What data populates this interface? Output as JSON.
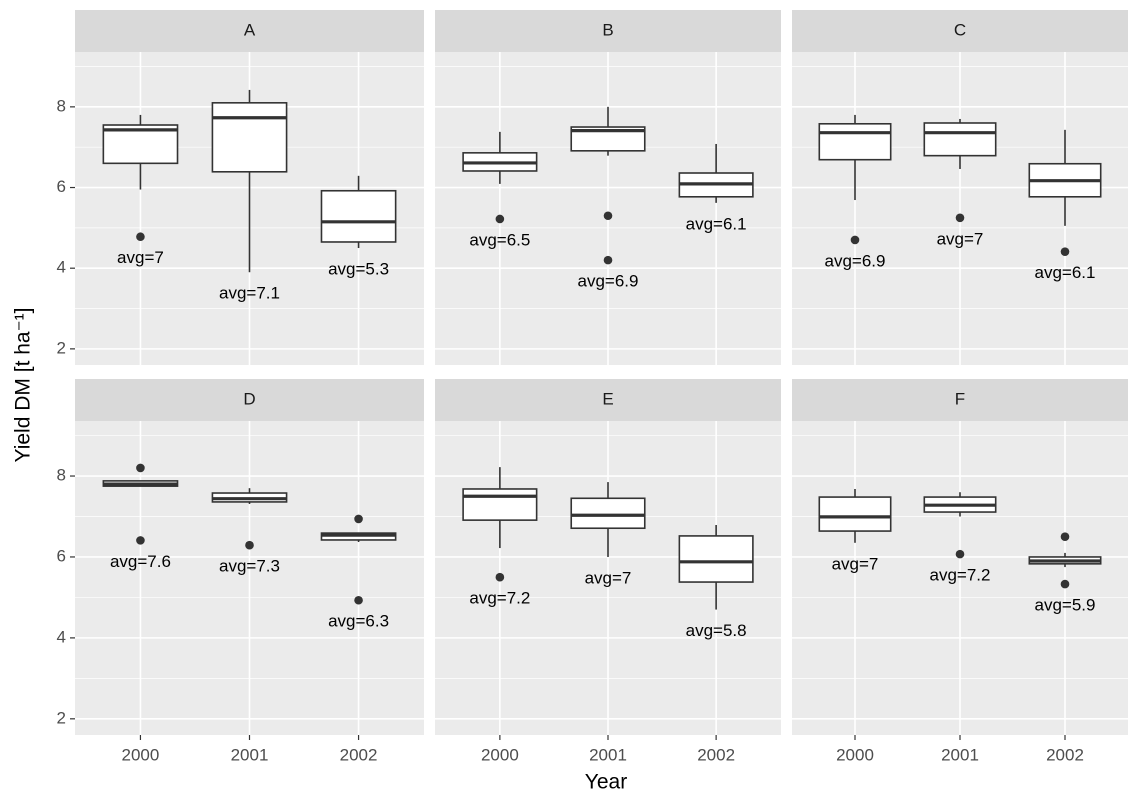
{
  "chart_data": {
    "type": "box",
    "xlabel": "Year",
    "ylabel": "Yield DM [t ha⁻¹]",
    "categories": [
      "2000",
      "2001",
      "2002"
    ],
    "ylim": [
      1.6,
      9.36
    ],
    "yticks": [
      2,
      4,
      6,
      8
    ],
    "minor_yticks": [
      3,
      5,
      7,
      9
    ],
    "grid": true,
    "box_fill": "#ffffff",
    "box_stroke": "#333333",
    "facets": [
      {
        "title": "A",
        "annotations": [
          "avg=7",
          "avg=7.1",
          "avg=5.3"
        ],
        "boxes": [
          {
            "low": 5.95,
            "q1": 6.6,
            "median": 7.43,
            "q3": 7.55,
            "high": 7.8,
            "outliers": [
              4.78
            ]
          },
          {
            "low": 3.9,
            "q1": 6.39,
            "median": 7.73,
            "q3": 8.1,
            "high": 8.42,
            "outliers": []
          },
          {
            "low": 4.5,
            "q1": 4.65,
            "median": 5.15,
            "q3": 5.92,
            "high": 6.29,
            "outliers": []
          }
        ]
      },
      {
        "title": "B",
        "annotations": [
          "avg=6.5",
          "avg=6.9",
          "avg=6.1"
        ],
        "boxes": [
          {
            "low": 6.09,
            "q1": 6.41,
            "median": 6.61,
            "q3": 6.86,
            "high": 7.38,
            "outliers": [
              5.22
            ]
          },
          {
            "low": 6.79,
            "q1": 6.91,
            "median": 7.41,
            "q3": 7.5,
            "high": 8.0,
            "outliers": [
              5.3,
              4.2
            ]
          },
          {
            "low": 5.62,
            "q1": 5.77,
            "median": 6.09,
            "q3": 6.36,
            "high": 7.08,
            "outliers": []
          }
        ]
      },
      {
        "title": "C",
        "annotations": [
          "avg=6.9",
          "avg=7",
          "avg=6.1"
        ],
        "boxes": [
          {
            "low": 5.69,
            "q1": 6.69,
            "median": 7.36,
            "q3": 7.58,
            "high": 7.8,
            "outliers": [
              4.7
            ]
          },
          {
            "low": 6.46,
            "q1": 6.79,
            "median": 7.36,
            "q3": 7.6,
            "high": 7.7,
            "outliers": [
              5.25
            ]
          },
          {
            "low": 5.05,
            "q1": 5.77,
            "median": 6.17,
            "q3": 6.59,
            "high": 7.43,
            "outliers": [
              4.41
            ]
          }
        ]
      },
      {
        "title": "D",
        "annotations": [
          "avg=7.6",
          "avg=7.3",
          "avg=6.3"
        ],
        "boxes": [
          {
            "low": 7.75,
            "q1": 7.75,
            "median": 7.8,
            "q3": 7.88,
            "high": 7.88,
            "outliers": [
              8.2,
              6.41
            ]
          },
          {
            "low": 7.31,
            "q1": 7.36,
            "median": 7.44,
            "q3": 7.58,
            "high": 7.7,
            "outliers": [
              6.29
            ]
          },
          {
            "low": 6.37,
            "q1": 6.42,
            "median": 6.54,
            "q3": 6.59,
            "high": 6.59,
            "outliers": [
              6.94,
              4.93
            ]
          }
        ]
      },
      {
        "title": "E",
        "annotations": [
          "avg=7.2",
          "avg=7",
          "avg=5.8"
        ],
        "boxes": [
          {
            "low": 6.22,
            "q1": 6.91,
            "median": 7.5,
            "q3": 7.68,
            "high": 8.22,
            "outliers": [
              5.5
            ]
          },
          {
            "low": 6.0,
            "q1": 6.71,
            "median": 7.03,
            "q3": 7.45,
            "high": 7.85,
            "outliers": []
          },
          {
            "low": 4.7,
            "q1": 5.38,
            "median": 5.88,
            "q3": 6.52,
            "high": 6.79,
            "outliers": []
          }
        ]
      },
      {
        "title": "F",
        "annotations": [
          "avg=7",
          "avg=7.2",
          "avg=5.9"
        ],
        "boxes": [
          {
            "low": 6.35,
            "q1": 6.64,
            "median": 6.99,
            "q3": 7.48,
            "high": 7.68,
            "outliers": []
          },
          {
            "low": 7.0,
            "q1": 7.11,
            "median": 7.28,
            "q3": 7.48,
            "high": 7.6,
            "outliers": [
              6.07
            ]
          },
          {
            "low": 5.75,
            "q1": 5.83,
            "median": 5.9,
            "q3": 6.0,
            "high": 6.1,
            "outliers": [
              6.5,
              5.33
            ]
          }
        ]
      }
    ]
  }
}
